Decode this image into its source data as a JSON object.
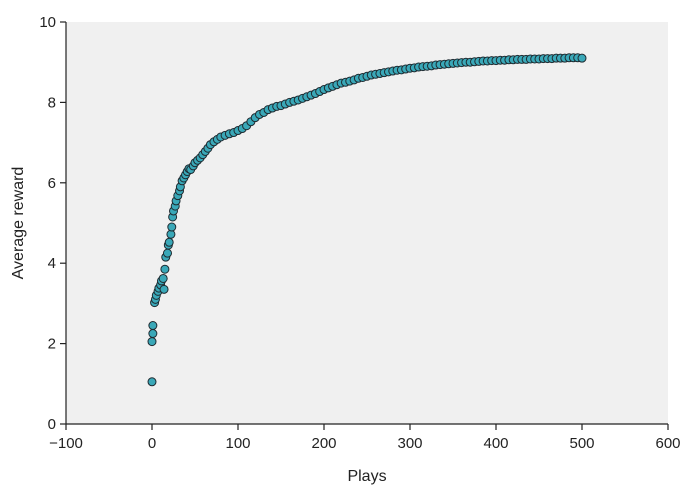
{
  "chart_data": {
    "type": "scatter",
    "title": "",
    "xlabel": "Plays",
    "ylabel": "Average reward",
    "xlim": [
      -100,
      600
    ],
    "ylim": [
      0,
      10
    ],
    "x_ticks": [
      -100,
      0,
      100,
      200,
      300,
      400,
      500,
      600
    ],
    "x_tick_labels": [
      "−100",
      "0",
      "100",
      "200",
      "300",
      "400",
      "500",
      "600"
    ],
    "y_ticks": [
      0,
      2,
      4,
      6,
      8,
      10
    ],
    "y_tick_labels": [
      "0",
      "2",
      "4",
      "6",
      "8",
      "10"
    ],
    "grid": false,
    "colors": {
      "plot_background": "#f0f0f0",
      "marker_fill": "#3aa8b8",
      "marker_edge": "#1e2a30",
      "axis": "#222222"
    },
    "series": [
      {
        "points": [
          [
            0,
            1.05
          ],
          [
            0,
            2.05
          ],
          [
            1,
            2.25
          ],
          [
            1,
            2.45
          ],
          [
            3,
            3.02
          ],
          [
            4,
            3.1
          ],
          [
            5,
            3.2
          ],
          [
            7,
            3.3
          ],
          [
            8,
            3.38
          ],
          [
            10,
            3.46
          ],
          [
            11,
            3.56
          ],
          [
            13,
            3.62
          ],
          [
            14,
            3.35
          ],
          [
            15,
            3.85
          ],
          [
            16,
            4.15
          ],
          [
            18,
            4.25
          ],
          [
            19,
            4.45
          ],
          [
            20,
            4.52
          ],
          [
            22,
            4.72
          ],
          [
            23,
            4.9
          ],
          [
            24,
            5.15
          ],
          [
            25,
            5.3
          ],
          [
            27,
            5.42
          ],
          [
            28,
            5.55
          ],
          [
            30,
            5.68
          ],
          [
            32,
            5.8
          ],
          [
            33,
            5.9
          ],
          [
            35,
            6.05
          ],
          [
            37,
            6.12
          ],
          [
            39,
            6.2
          ],
          [
            41,
            6.28
          ],
          [
            43,
            6.35
          ],
          [
            45,
            6.33
          ],
          [
            48,
            6.42
          ],
          [
            50,
            6.5
          ],
          [
            53,
            6.56
          ],
          [
            56,
            6.62
          ],
          [
            59,
            6.7
          ],
          [
            62,
            6.78
          ],
          [
            65,
            6.86
          ],
          [
            68,
            6.95
          ],
          [
            72,
            7.02
          ],
          [
            76,
            7.08
          ],
          [
            80,
            7.14
          ],
          [
            85,
            7.18
          ],
          [
            90,
            7.22
          ],
          [
            95,
            7.25
          ],
          [
            100,
            7.3
          ],
          [
            105,
            7.35
          ],
          [
            110,
            7.42
          ],
          [
            115,
            7.52
          ],
          [
            120,
            7.62
          ],
          [
            125,
            7.7
          ],
          [
            130,
            7.75
          ],
          [
            135,
            7.82
          ],
          [
            140,
            7.86
          ],
          [
            145,
            7.9
          ],
          [
            150,
            7.92
          ],
          [
            155,
            7.96
          ],
          [
            160,
            8.0
          ],
          [
            165,
            8.03
          ],
          [
            170,
            8.06
          ],
          [
            175,
            8.1
          ],
          [
            180,
            8.14
          ],
          [
            185,
            8.18
          ],
          [
            190,
            8.22
          ],
          [
            195,
            8.27
          ],
          [
            200,
            8.32
          ],
          [
            205,
            8.36
          ],
          [
            210,
            8.4
          ],
          [
            215,
            8.44
          ],
          [
            220,
            8.48
          ],
          [
            225,
            8.5
          ],
          [
            230,
            8.53
          ],
          [
            235,
            8.56
          ],
          [
            240,
            8.6
          ],
          [
            245,
            8.62
          ],
          [
            250,
            8.65
          ],
          [
            255,
            8.68
          ],
          [
            260,
            8.7
          ],
          [
            265,
            8.72
          ],
          [
            270,
            8.74
          ],
          [
            275,
            8.76
          ],
          [
            280,
            8.78
          ],
          [
            285,
            8.8
          ],
          [
            290,
            8.81
          ],
          [
            295,
            8.83
          ],
          [
            300,
            8.85
          ],
          [
            305,
            8.86
          ],
          [
            310,
            8.88
          ],
          [
            315,
            8.89
          ],
          [
            320,
            8.9
          ],
          [
            325,
            8.91
          ],
          [
            330,
            8.93
          ],
          [
            335,
            8.94
          ],
          [
            340,
            8.95
          ],
          [
            345,
            8.96
          ],
          [
            350,
            8.97
          ],
          [
            355,
            8.98
          ],
          [
            360,
            8.99
          ],
          [
            365,
            9.0
          ],
          [
            370,
            9.0
          ],
          [
            375,
            9.01
          ],
          [
            380,
            9.02
          ],
          [
            385,
            9.03
          ],
          [
            390,
            9.03
          ],
          [
            395,
            9.04
          ],
          [
            400,
            9.04
          ],
          [
            405,
            9.05
          ],
          [
            410,
            9.05
          ],
          [
            415,
            9.06
          ],
          [
            420,
            9.06
          ],
          [
            425,
            9.07
          ],
          [
            430,
            9.07
          ],
          [
            435,
            9.07
          ],
          [
            440,
            9.08
          ],
          [
            445,
            9.08
          ],
          [
            450,
            9.08
          ],
          [
            455,
            9.09
          ],
          [
            460,
            9.09
          ],
          [
            465,
            9.09
          ],
          [
            470,
            9.1
          ],
          [
            475,
            9.1
          ],
          [
            480,
            9.1
          ],
          [
            485,
            9.11
          ],
          [
            490,
            9.11
          ],
          [
            495,
            9.11
          ],
          [
            500,
            9.1
          ]
        ]
      }
    ]
  }
}
